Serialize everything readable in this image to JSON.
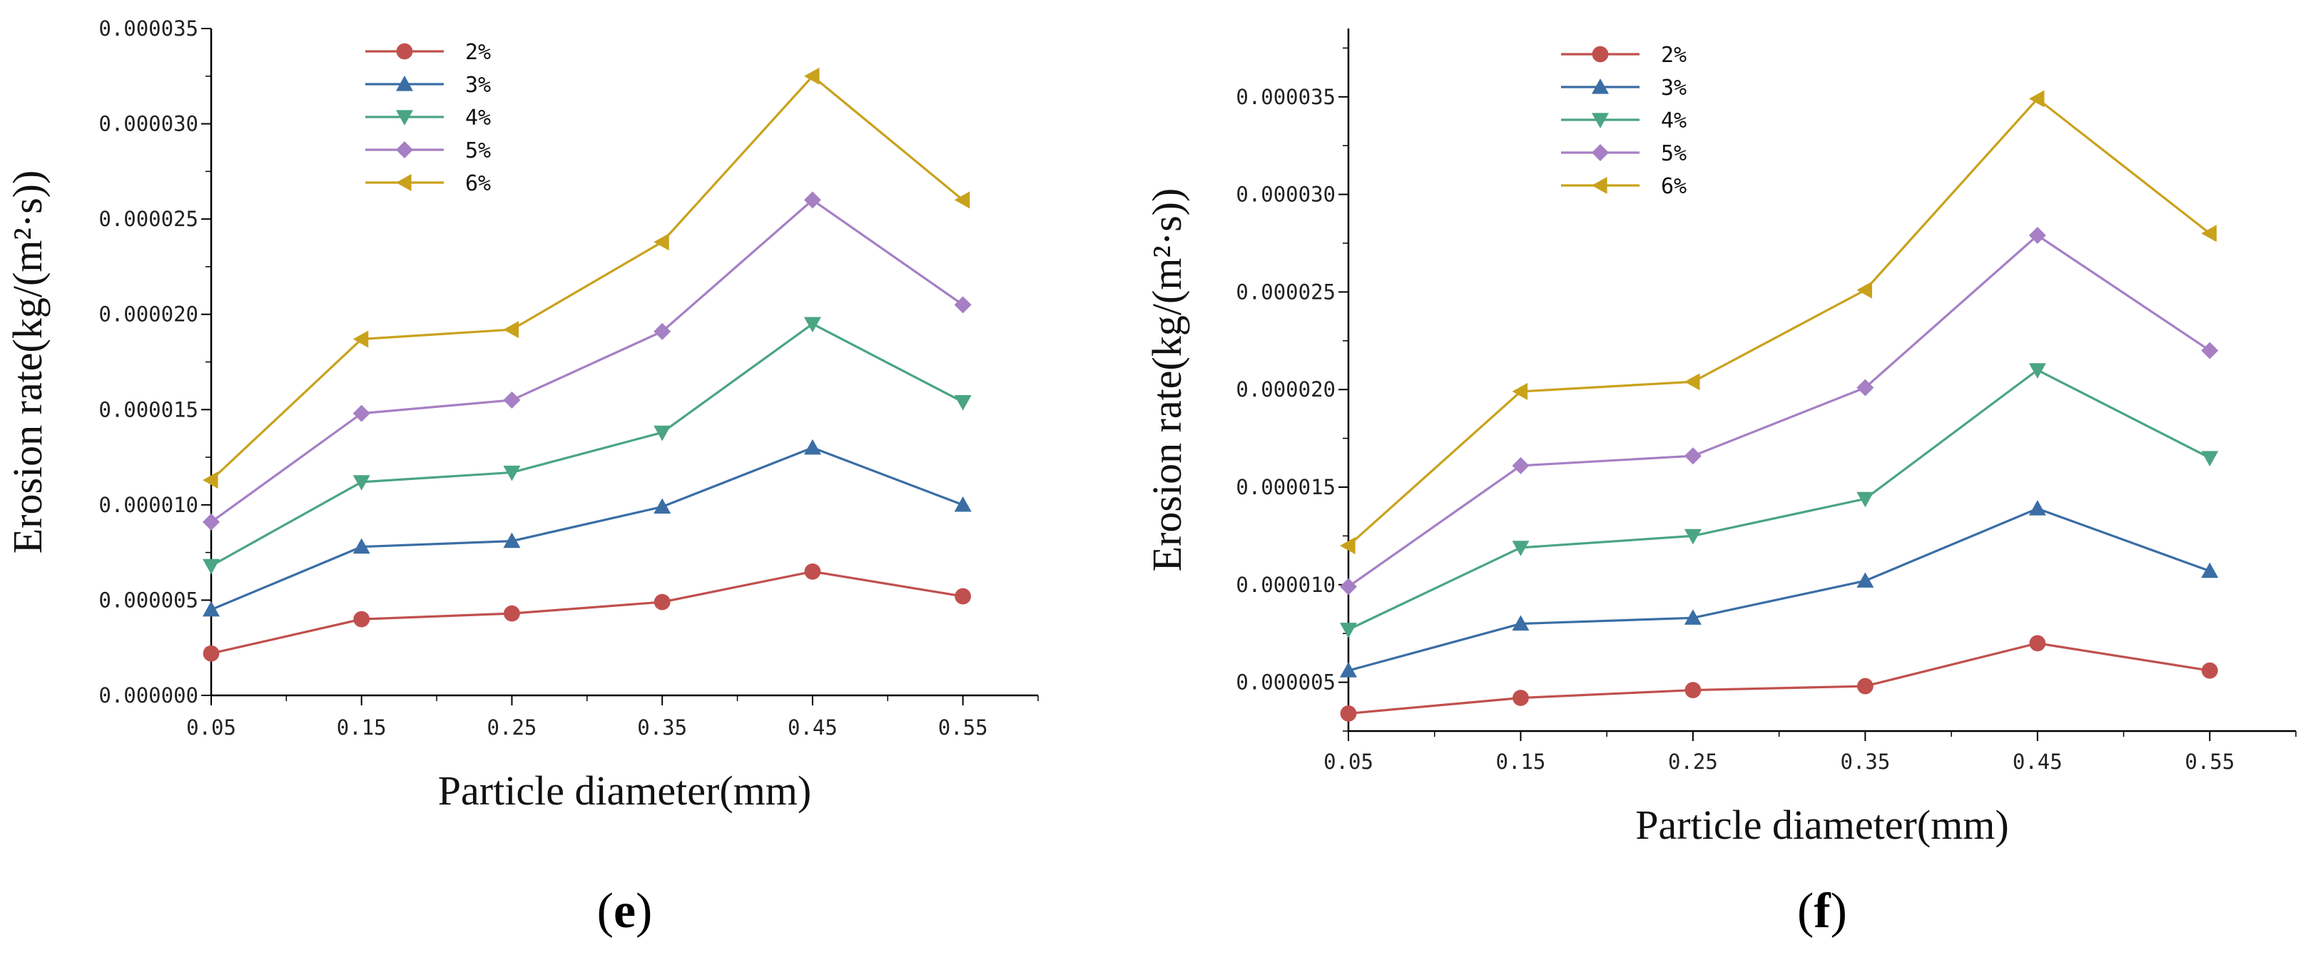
{
  "colors": {
    "2%": "#c0504d",
    "3%": "#3a6ea5",
    "4%": "#4aa582",
    "5%": "#a67fc4",
    "6%": "#c9a21c"
  },
  "chart_data": [
    {
      "type": "line",
      "panel_label": "e",
      "xlabel": "Particle diameter(mm)",
      "ylabel": "Erosion rate(kg/(m²·s))",
      "x": [
        0.05,
        0.15,
        0.25,
        0.35,
        0.45,
        0.55
      ],
      "x_tick_labels": [
        "0.05",
        "0.15",
        "0.25",
        "0.35",
        "0.45",
        "0.55"
      ],
      "xlim": [
        0.05,
        0.6
      ],
      "ylim": [
        0.0,
        3.5e-05
      ],
      "y_ticks": [
        0.0,
        5e-06,
        1e-05,
        1.5e-05,
        2e-05,
        2.5e-05,
        3e-05,
        3.5e-05
      ],
      "y_tick_labels": [
        "0.000000",
        "0.000005",
        "0.000010",
        "0.000015",
        "0.000020",
        "0.000025",
        "0.000030",
        "0.000035"
      ],
      "legend": "top-left",
      "series": [
        {
          "name": "2%",
          "marker": "circle",
          "values": [
            2.2e-06,
            4e-06,
            4.3e-06,
            4.9e-06,
            6.5e-06,
            5.2e-06
          ]
        },
        {
          "name": "3%",
          "marker": "triangle-up",
          "values": [
            4.5e-06,
            7.8e-06,
            8.1e-06,
            9.9e-06,
            1.3e-05,
            1e-05
          ]
        },
        {
          "name": "4%",
          "marker": "triangle-down",
          "values": [
            6.8e-06,
            1.12e-05,
            1.17e-05,
            1.38e-05,
            1.95e-05,
            1.54e-05
          ]
        },
        {
          "name": "5%",
          "marker": "diamond",
          "values": [
            9.1e-06,
            1.48e-05,
            1.55e-05,
            1.91e-05,
            2.6e-05,
            2.05e-05
          ]
        },
        {
          "name": "6%",
          "marker": "triangle-left",
          "values": [
            1.13e-05,
            1.87e-05,
            1.92e-05,
            2.38e-05,
            3.25e-05,
            2.6e-05
          ]
        }
      ]
    },
    {
      "type": "line",
      "panel_label": "f",
      "xlabel": "Particle diameter(mm)",
      "ylabel": "Erosion rate(kg/(m²·s))",
      "x": [
        0.05,
        0.15,
        0.25,
        0.35,
        0.45,
        0.55
      ],
      "x_tick_labels": [
        "0.05",
        "0.15",
        "0.25",
        "0.35",
        "0.45",
        "0.55"
      ],
      "xlim": [
        0.05,
        0.6
      ],
      "ylim": [
        2.5e-06,
        3.85e-05
      ],
      "y_ticks": [
        5e-06,
        1e-05,
        1.5e-05,
        2e-05,
        2.5e-05,
        3e-05,
        3.5e-05
      ],
      "y_tick_labels": [
        "0.000005",
        "0.000010",
        "0.000015",
        "0.000020",
        "0.000025",
        "0.000030",
        "0.000035"
      ],
      "legend": "top-left",
      "series": [
        {
          "name": "2%",
          "marker": "circle",
          "values": [
            3.4e-06,
            4.2e-06,
            4.6e-06,
            4.8e-06,
            7e-06,
            5.6e-06
          ]
        },
        {
          "name": "3%",
          "marker": "triangle-up",
          "values": [
            5.6e-06,
            8e-06,
            8.3e-06,
            1.02e-05,
            1.39e-05,
            1.07e-05
          ]
        },
        {
          "name": "4%",
          "marker": "triangle-down",
          "values": [
            7.7e-06,
            1.19e-05,
            1.25e-05,
            1.44e-05,
            2.1e-05,
            1.65e-05
          ]
        },
        {
          "name": "5%",
          "marker": "diamond",
          "values": [
            9.9e-06,
            1.61e-05,
            1.66e-05,
            2.01e-05,
            2.79e-05,
            2.2e-05
          ]
        },
        {
          "name": "6%",
          "marker": "triangle-left",
          "values": [
            1.2e-05,
            1.99e-05,
            2.04e-05,
            2.51e-05,
            3.49e-05,
            2.8e-05
          ]
        }
      ]
    }
  ]
}
